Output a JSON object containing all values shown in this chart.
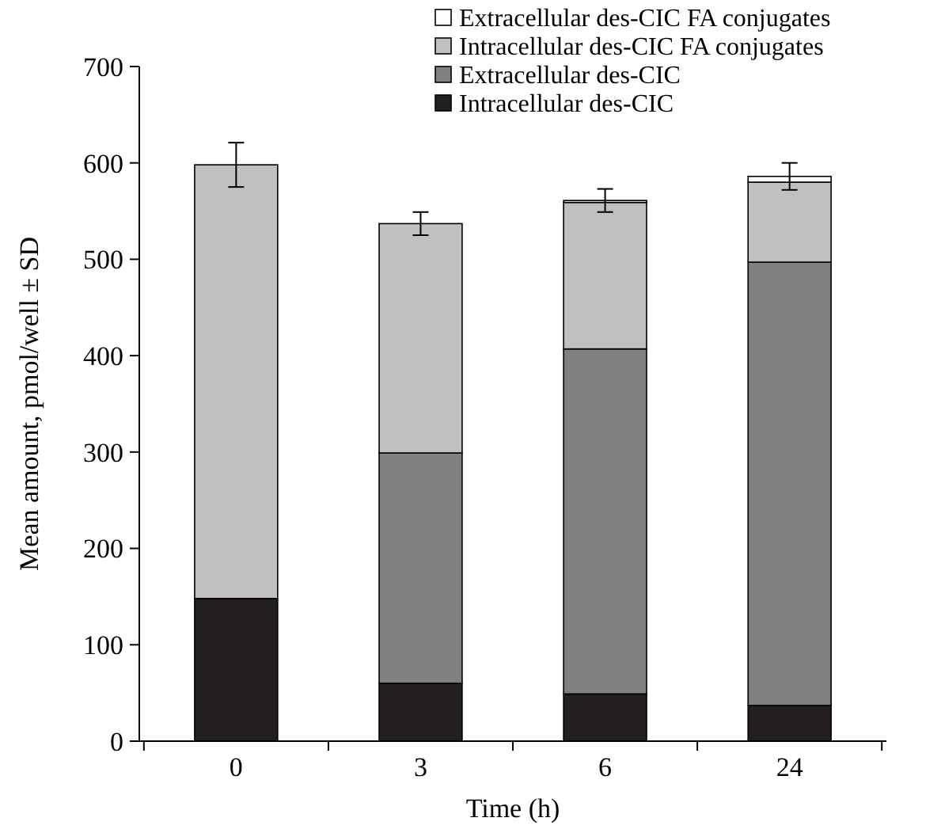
{
  "chart_data": {
    "type": "bar",
    "stacked": true,
    "xlabel": "Time (h)",
    "ylabel": "Mean amount, pmol/well ± SD",
    "categories": [
      "0",
      "3",
      "6",
      "24"
    ],
    "ylim": [
      0,
      700
    ],
    "yticks": [
      0,
      100,
      200,
      300,
      400,
      500,
      600,
      700
    ],
    "legend": "top right",
    "series": [
      {
        "name": "Intracellular des-CIC",
        "color": "#231f20",
        "values": [
          148,
          60,
          49,
          37
        ]
      },
      {
        "name": "Extracellular des-CIC",
        "color": "#808080",
        "values": [
          0,
          239,
          358,
          460
        ]
      },
      {
        "name": "Intracellular des-CIC FA conjugates",
        "color": "#c0c0c0",
        "values": [
          450,
          238,
          152,
          83
        ]
      },
      {
        "name": "Extracellular des-CIC FA conjugates",
        "color": "#ffffff",
        "values": [
          0,
          0,
          2,
          6
        ],
        "errors": [
          23,
          12,
          12,
          14
        ]
      }
    ]
  }
}
